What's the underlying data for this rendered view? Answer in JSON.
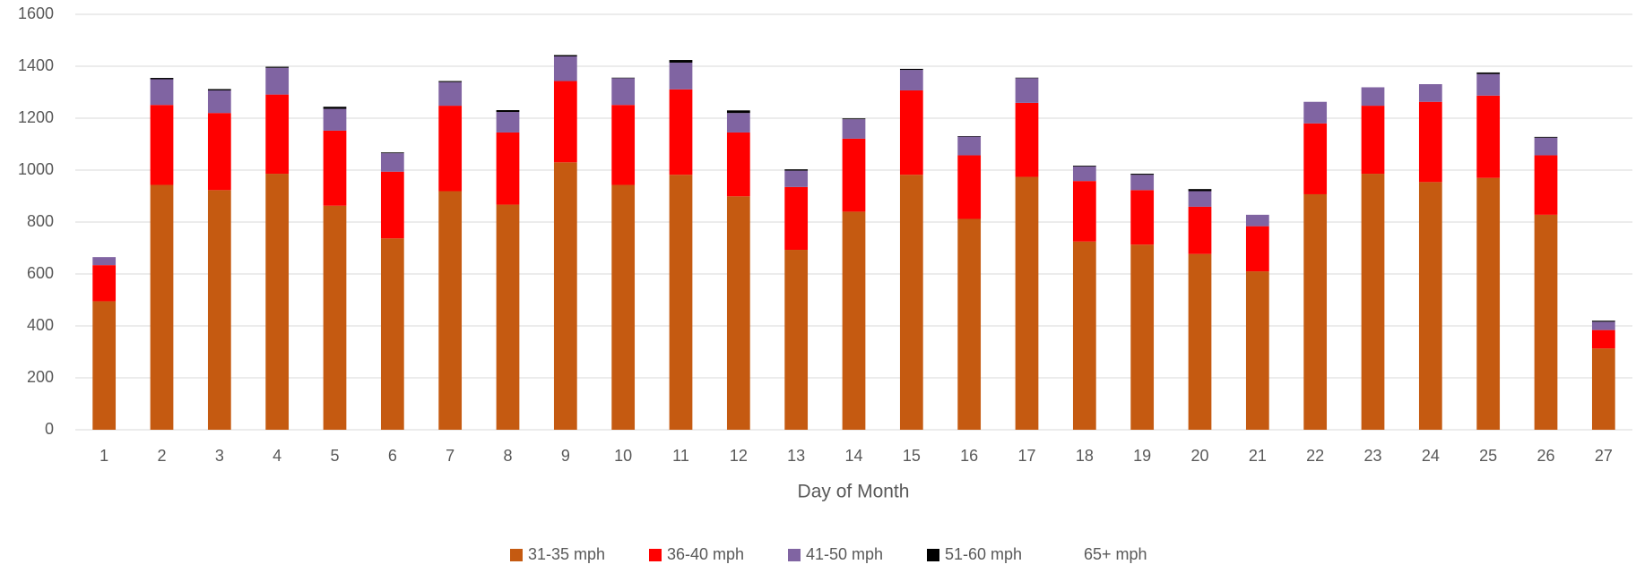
{
  "chart_data": {
    "type": "stacked_bar",
    "x_label": "Day of Month",
    "categories": [
      "1",
      "2",
      "3",
      "4",
      "5",
      "6",
      "7",
      "8",
      "9",
      "10",
      "11",
      "12",
      "13",
      "14",
      "15",
      "16",
      "17",
      "18",
      "19",
      "20",
      "21",
      "22",
      "23",
      "24",
      "25",
      "26",
      "27"
    ],
    "series": [
      {
        "name": "31-35 mph",
        "color": "#c55a11",
        "values": [
          495,
          943,
          923,
          986,
          863,
          737,
          919,
          867,
          1030,
          943,
          982,
          899,
          693,
          840,
          982,
          812,
          974,
          725,
          713,
          677,
          610,
          907,
          986,
          954,
          970,
          828,
          313
        ]
      },
      {
        "name": "36-40 mph",
        "color": "#ff0000",
        "values": [
          139,
          308,
          297,
          305,
          289,
          257,
          329,
          278,
          313,
          308,
          329,
          246,
          242,
          281,
          325,
          245,
          285,
          233,
          210,
          182,
          174,
          273,
          262,
          309,
          317,
          229,
          71
        ]
      },
      {
        "name": "41-50 mph",
        "color": "#8064a2",
        "values": [
          31,
          99,
          87,
          103,
          84,
          71,
          91,
          79,
          95,
          103,
          103,
          75,
          63,
          75,
          79,
          72,
          95,
          56,
          59,
          60,
          44,
          83,
          71,
          68,
          83,
          68,
          32
        ]
      },
      {
        "name": "51-60 mph",
        "color": "#000000",
        "values": [
          0,
          5,
          5,
          4,
          8,
          3,
          4,
          7,
          5,
          2,
          10,
          10,
          5,
          3,
          4,
          2,
          2,
          3,
          4,
          8,
          0,
          0,
          0,
          0,
          6,
          3,
          4
        ]
      },
      {
        "name": "65+ mph",
        "color": "none",
        "values": [
          0,
          0,
          0,
          0,
          0,
          0,
          0,
          0,
          0,
          0,
          0,
          0,
          0,
          0,
          0,
          0,
          0,
          0,
          0,
          0,
          0,
          0,
          0,
          0,
          0,
          0,
          0
        ]
      }
    ],
    "ylim": [
      0,
      1600
    ],
    "yticks": [
      0,
      200,
      400,
      600,
      800,
      1000,
      1200,
      1400,
      1600
    ],
    "grid": true,
    "legend": "bottom"
  }
}
